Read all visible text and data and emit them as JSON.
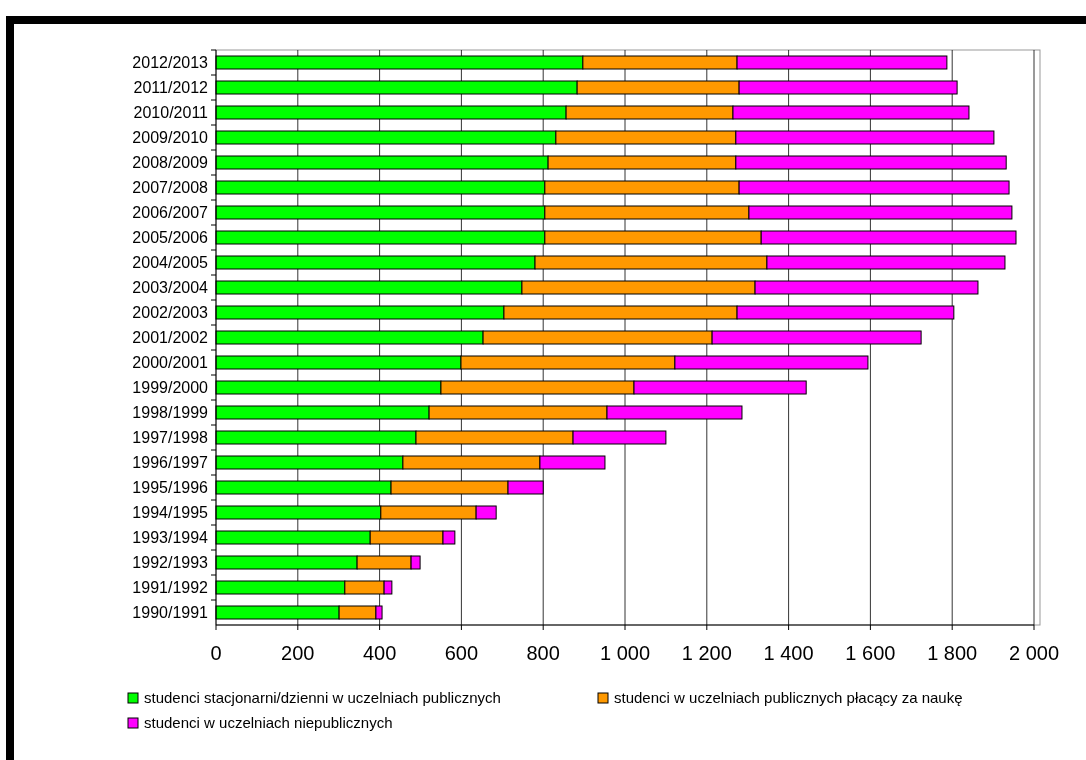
{
  "chart_data": {
    "type": "bar",
    "orientation": "horizontal",
    "stacked": true,
    "categories": [
      "2012/2013",
      "2011/2012",
      "2010/2011",
      "2009/2010",
      "2008/2009",
      "2007/2008",
      "2006/2007",
      "2005/2006",
      "2004/2005",
      "2003/2004",
      "2002/2003",
      "2001/2002",
      "2000/2001",
      "1999/2000",
      "1998/1999",
      "1997/1998",
      "1996/1997",
      "1995/1996",
      "1994/1995",
      "1993/1994",
      "1992/1993",
      "1991/1992",
      "1990/1991"
    ],
    "series": [
      {
        "name": "studenci stacjonarni/dzienni w uczelniach publicznych",
        "color": "#00ff00",
        "values": [
          897,
          883,
          856,
          831,
          812,
          804,
          804,
          804,
          780,
          748,
          704,
          653,
          599,
          550,
          521,
          489,
          457,
          428,
          403,
          377,
          345,
          315,
          301
        ]
      },
      {
        "name": "studenci w uczelniach publicznych płacący za naukę",
        "color": "#ff9900",
        "values": [
          377,
          396,
          408,
          440,
          459,
          475,
          499,
          529,
          567,
          570,
          570,
          560,
          523,
          472,
          435,
          384,
          335,
          286,
          233,
          178,
          132,
          96,
          90
        ]
      },
      {
        "name": "studenci w uczelniach niepublicznych",
        "color": "#ff00ff",
        "values": [
          513,
          533,
          577,
          631,
          661,
          660,
          643,
          623,
          582,
          545,
          530,
          511,
          472,
          421,
          330,
          227,
          159,
          86,
          49,
          29,
          22,
          19,
          15
        ]
      }
    ],
    "xlim": [
      0,
      2000
    ],
    "xticks": [
      0,
      200,
      400,
      600,
      800,
      {
        "value": 1000,
        "label": "1 000"
      },
      {
        "value": 1200,
        "label": "1 200"
      },
      {
        "value": 1400,
        "label": "1 400"
      },
      {
        "value": 1600,
        "label": "1 600"
      },
      {
        "value": 1800,
        "label": "1 800"
      },
      {
        "value": 2000,
        "label": "2 000"
      }
    ],
    "grid": "x",
    "legend": "bottom"
  }
}
